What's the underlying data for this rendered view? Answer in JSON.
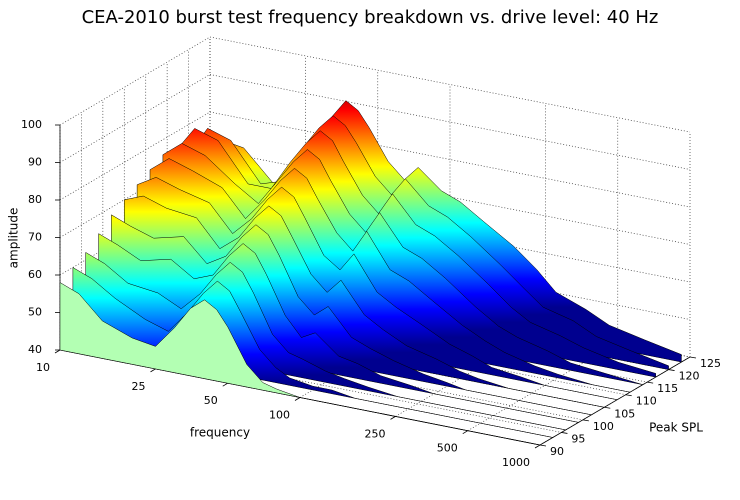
{
  "chart_data": {
    "type": "waterfall",
    "title": "CEA-2010 burst test frequency breakdown vs. drive level: 40 Hz",
    "x_label": "frequency",
    "y_label": "Peak SPL",
    "z_label": "amplitude",
    "x_scale": "log",
    "x": [
      10,
      12,
      15,
      20,
      25,
      30,
      35,
      40,
      45,
      50,
      60,
      70,
      80,
      100,
      120,
      150,
      200,
      250,
      300,
      400,
      500,
      700,
      1000
    ],
    "y": [
      90,
      93,
      96,
      99,
      102,
      105,
      108,
      111,
      114,
      117,
      120,
      123
    ],
    "values": [
      [
        58,
        56,
        50,
        47,
        46,
        52,
        58,
        61,
        59,
        55,
        46,
        42,
        41,
        40,
        40,
        40,
        40,
        40,
        40,
        40,
        40,
        40,
        40
      ],
      [
        60,
        58,
        54,
        50,
        48,
        54,
        60,
        64,
        62,
        57,
        48,
        44,
        42,
        41,
        41,
        40,
        40,
        40,
        40,
        40,
        40,
        40,
        40
      ],
      [
        62,
        60,
        56,
        55,
        52,
        57,
        63,
        67,
        65,
        60,
        50,
        46,
        45,
        43,
        42,
        41,
        40,
        40,
        40,
        40,
        40,
        40,
        40
      ],
      [
        65,
        63,
        60,
        62,
        58,
        60,
        66,
        70,
        68,
        63,
        53,
        48,
        50,
        45,
        44,
        42,
        41,
        40,
        40,
        40,
        40,
        40,
        40
      ],
      [
        68,
        66,
        64,
        66,
        60,
        63,
        69,
        73,
        71,
        66,
        56,
        52,
        55,
        48,
        46,
        44,
        42,
        41,
        40,
        40,
        40,
        40,
        40
      ],
      [
        70,
        72,
        70,
        69,
        62,
        66,
        72,
        76,
        74,
        69,
        60,
        56,
        60,
        52,
        49,
        46,
        44,
        42,
        41,
        40,
        40,
        40,
        40
      ],
      [
        72,
        75,
        73,
        71,
        64,
        69,
        75,
        79,
        77,
        72,
        63,
        60,
        65,
        56,
        53,
        50,
        46,
        44,
        42,
        41,
        40,
        40,
        40
      ],
      [
        74,
        78,
        76,
        73,
        66,
        72,
        78,
        82,
        80,
        75,
        67,
        63,
        69,
        60,
        58,
        54,
        49,
        46,
        44,
        42,
        41,
        40,
        40
      ],
      [
        76,
        80,
        78,
        72,
        68,
        75,
        81,
        85,
        83,
        78,
        70,
        66,
        72,
        64,
        62,
        58,
        52,
        48,
        46,
        44,
        42,
        41,
        40
      ],
      [
        75,
        82,
        80,
        70,
        70,
        78,
        84,
        88,
        86,
        81,
        73,
        69,
        75,
        68,
        66,
        62,
        56,
        51,
        48,
        46,
        44,
        42,
        41
      ],
      [
        72,
        80,
        78,
        68,
        70,
        80,
        86,
        90,
        88,
        84,
        76,
        72,
        77,
        71,
        69,
        65,
        59,
        54,
        50,
        48,
        45,
        43,
        41
      ],
      [
        68,
        75,
        74,
        66,
        68,
        80,
        87,
        92,
        90,
        86,
        78,
        74,
        78,
        73,
        71,
        67,
        62,
        57,
        52,
        49,
        46,
        44,
        42
      ]
    ],
    "xlim": [
      10,
      1000
    ],
    "xticks": [
      10,
      25,
      50,
      100,
      250,
      500,
      1000
    ],
    "ylim": [
      90,
      125
    ],
    "yticks": [
      90,
      95,
      100,
      105,
      110,
      115,
      120,
      125
    ],
    "zlim": [
      40,
      100
    ],
    "zticks": [
      40,
      50,
      60,
      70,
      80,
      90,
      100
    ],
    "grid": true,
    "colormap": [
      "#00008f",
      "#0000ff",
      "#0080ff",
      "#00ffff",
      "#80ff80",
      "#ffff00",
      "#ff8000",
      "#ff0000",
      "#800000"
    ],
    "front_color": "#b3ffb3"
  }
}
